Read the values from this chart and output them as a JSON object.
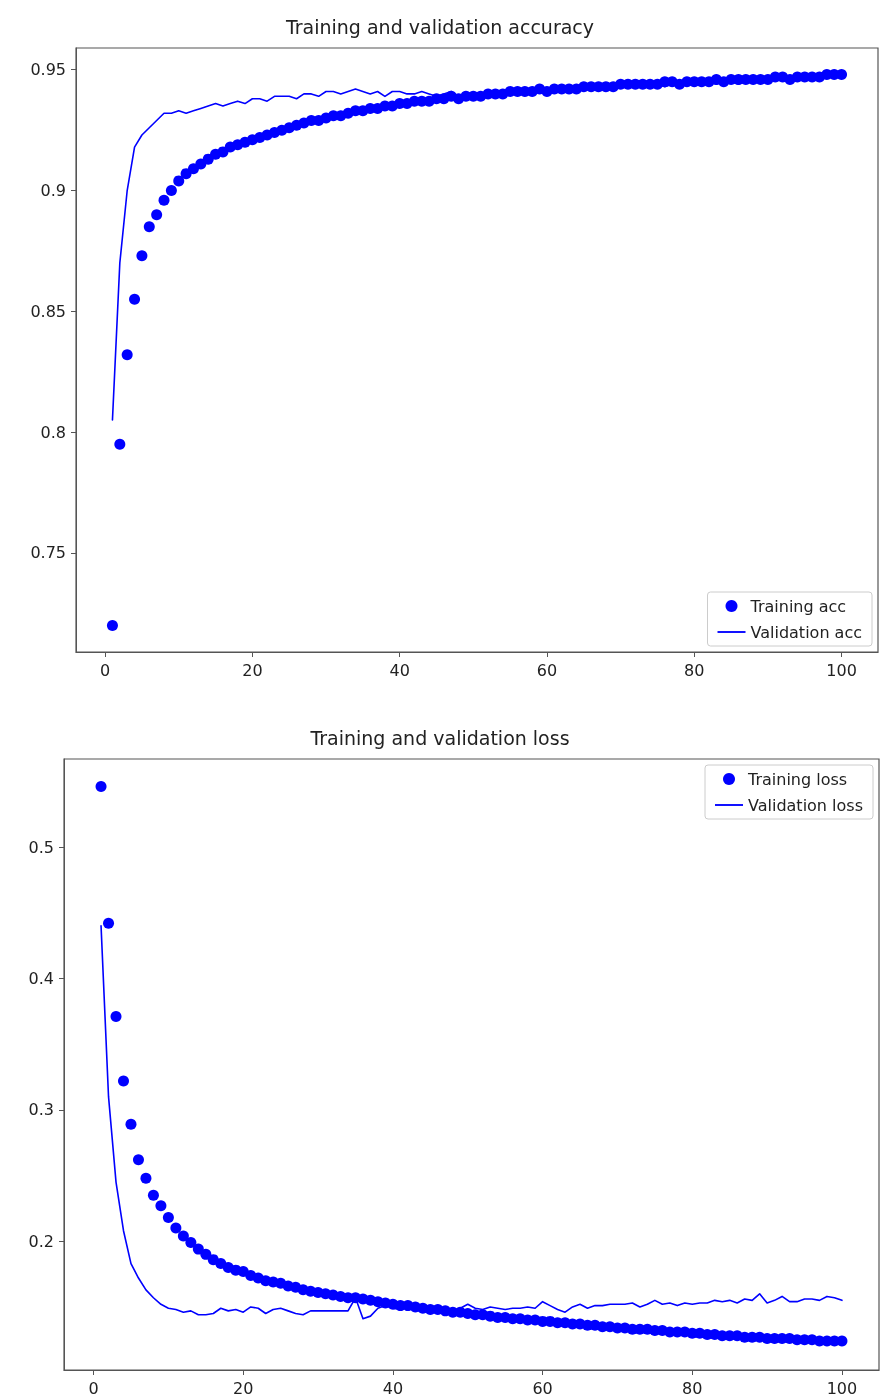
{
  "chart_data": [
    {
      "type": "line",
      "title": "Training and validation accuracy",
      "x": [
        1,
        2,
        3,
        4,
        5,
        6,
        7,
        8,
        9,
        10,
        11,
        12,
        13,
        14,
        15,
        16,
        17,
        18,
        19,
        20,
        21,
        22,
        23,
        24,
        25,
        26,
        27,
        28,
        29,
        30,
        31,
        32,
        33,
        34,
        35,
        36,
        37,
        38,
        39,
        40,
        41,
        42,
        43,
        44,
        45,
        46,
        47,
        48,
        49,
        50,
        51,
        52,
        53,
        54,
        55,
        56,
        57,
        58,
        59,
        60,
        61,
        62,
        63,
        64,
        65,
        66,
        67,
        68,
        69,
        70,
        71,
        72,
        73,
        74,
        75,
        76,
        77,
        78,
        79,
        80,
        81,
        82,
        83,
        84,
        85,
        86,
        87,
        88,
        89,
        90,
        91,
        92,
        93,
        94,
        95,
        96,
        97,
        98,
        99,
        100
      ],
      "xlim": [
        -3.95,
        104.95
      ],
      "xticks": [
        0,
        20,
        40,
        60,
        80,
        100
      ],
      "ylim": [
        0.709,
        0.959
      ],
      "yticks": [
        0.75,
        0.8,
        0.85,
        0.9,
        0.95
      ],
      "grid": false,
      "legend": "bottom right",
      "series": [
        {
          "name": "Training acc",
          "type": "scatter",
          "marker": "circle",
          "color": "#0000ff",
          "values": [
            0.72,
            0.795,
            0.832,
            0.855,
            0.873,
            0.885,
            0.89,
            0.896,
            0.9,
            0.904,
            0.907,
            0.909,
            0.911,
            0.913,
            0.915,
            0.916,
            0.918,
            0.919,
            0.92,
            0.921,
            0.922,
            0.923,
            0.924,
            0.925,
            0.926,
            0.927,
            0.928,
            0.929,
            0.929,
            0.93,
            0.931,
            0.931,
            0.932,
            0.933,
            0.933,
            0.934,
            0.934,
            0.935,
            0.935,
            0.936,
            0.936,
            0.937,
            0.937,
            0.937,
            0.938,
            0.938,
            0.939,
            0.938,
            0.939,
            0.939,
            0.939,
            0.94,
            0.94,
            0.94,
            0.941,
            0.941,
            0.941,
            0.941,
            0.942,
            0.941,
            0.942,
            0.942,
            0.942,
            0.942,
            0.943,
            0.943,
            0.943,
            0.943,
            0.943,
            0.944,
            0.944,
            0.944,
            0.944,
            0.944,
            0.944,
            0.945,
            0.945,
            0.944,
            0.945,
            0.945,
            0.945,
            0.945,
            0.946,
            0.945,
            0.946,
            0.946,
            0.946,
            0.946,
            0.946,
            0.946,
            0.947,
            0.947,
            0.946,
            0.947,
            0.947,
            0.947,
            0.947,
            0.948,
            0.948,
            0.948
          ]
        },
        {
          "name": "Validation acc",
          "type": "line",
          "line_style": "solid",
          "color": "#0000ff",
          "values": [
            0.805,
            0.87,
            0.9,
            0.918,
            0.923,
            0.926,
            0.929,
            0.932,
            0.932,
            0.933,
            0.932,
            0.933,
            0.934,
            0.935,
            0.936,
            0.935,
            0.936,
            0.937,
            0.936,
            0.938,
            0.938,
            0.937,
            0.939,
            0.939,
            0.939,
            0.938,
            0.94,
            0.94,
            0.939,
            0.941,
            0.941,
            0.94,
            0.941,
            0.942,
            0.941,
            0.94,
            0.941,
            0.939,
            0.941,
            0.941,
            0.94,
            0.94,
            0.941,
            0.94,
            0.939,
            0.94,
            0.941,
            0.939,
            0.94,
            0.94,
            0.939,
            0.94,
            0.941,
            0.94,
            0.941,
            0.941,
            0.94,
            0.942,
            0.942,
            0.941,
            0.941,
            0.942,
            0.941,
            0.942,
            0.943,
            0.942,
            0.943,
            0.942,
            0.943,
            0.944,
            0.943,
            0.944,
            0.943,
            0.944,
            0.944,
            0.943,
            0.944,
            0.944,
            0.945,
            0.944,
            0.944,
            0.945,
            0.944,
            0.945,
            0.945,
            0.944,
            0.945,
            0.946,
            0.945,
            0.946,
            0.946,
            0.946,
            0.945,
            0.946,
            0.947,
            0.946,
            0.947,
            0.947,
            0.947,
            0.948
          ]
        }
      ]
    },
    {
      "type": "line",
      "title": "Training and validation loss",
      "x": [
        1,
        2,
        3,
        4,
        5,
        6,
        7,
        8,
        9,
        10,
        11,
        12,
        13,
        14,
        15,
        16,
        17,
        18,
        19,
        20,
        21,
        22,
        23,
        24,
        25,
        26,
        27,
        28,
        29,
        30,
        31,
        32,
        33,
        34,
        35,
        36,
        37,
        38,
        39,
        40,
        41,
        42,
        43,
        44,
        45,
        46,
        47,
        48,
        49,
        50,
        51,
        52,
        53,
        54,
        55,
        56,
        57,
        58,
        59,
        60,
        61,
        62,
        63,
        64,
        65,
        66,
        67,
        68,
        69,
        70,
        71,
        72,
        73,
        74,
        75,
        76,
        77,
        78,
        79,
        80,
        81,
        82,
        83,
        84,
        85,
        86,
        87,
        88,
        89,
        90,
        91,
        92,
        93,
        94,
        95,
        96,
        97,
        98,
        99,
        100
      ],
      "xlim": [
        -3.95,
        104.95
      ],
      "xticks": [
        0,
        20,
        40,
        60,
        80,
        100
      ],
      "ylim": [
        0.102,
        0.567
      ],
      "yticks": [
        0.2,
        0.3,
        0.4,
        0.5
      ],
      "grid": false,
      "legend": "top right",
      "series": [
        {
          "name": "Training loss",
          "type": "scatter",
          "marker": "circle",
          "color": "#0000ff",
          "values": [
            0.546,
            0.442,
            0.371,
            0.322,
            0.289,
            0.262,
            0.248,
            0.235,
            0.227,
            0.218,
            0.21,
            0.204,
            0.199,
            0.194,
            0.19,
            0.186,
            0.183,
            0.18,
            0.178,
            0.177,
            0.174,
            0.172,
            0.17,
            0.169,
            0.168,
            0.166,
            0.165,
            0.163,
            0.162,
            0.161,
            0.16,
            0.159,
            0.158,
            0.157,
            0.157,
            0.156,
            0.155,
            0.154,
            0.153,
            0.152,
            0.151,
            0.151,
            0.15,
            0.149,
            0.148,
            0.148,
            0.147,
            0.146,
            0.146,
            0.145,
            0.144,
            0.144,
            0.143,
            0.142,
            0.142,
            0.141,
            0.141,
            0.14,
            0.14,
            0.139,
            0.139,
            0.138,
            0.138,
            0.137,
            0.137,
            0.136,
            0.136,
            0.135,
            0.135,
            0.134,
            0.134,
            0.133,
            0.133,
            0.133,
            0.132,
            0.132,
            0.131,
            0.131,
            0.131,
            0.13,
            0.13,
            0.129,
            0.129,
            0.128,
            0.128,
            0.128,
            0.127,
            0.127,
            0.127,
            0.126,
            0.126,
            0.126,
            0.126,
            0.125,
            0.125,
            0.125,
            0.124,
            0.124,
            0.124,
            0.124
          ]
        },
        {
          "name": "Validation loss",
          "type": "line",
          "line_style": "solid",
          "color": "#0000ff",
          "values": [
            0.44,
            0.31,
            0.245,
            0.208,
            0.183,
            0.172,
            0.163,
            0.157,
            0.152,
            0.149,
            0.148,
            0.146,
            0.147,
            0.144,
            0.144,
            0.145,
            0.149,
            0.147,
            0.148,
            0.146,
            0.15,
            0.149,
            0.145,
            0.148,
            0.149,
            0.147,
            0.145,
            0.144,
            0.147,
            0.147,
            0.147,
            0.147,
            0.147,
            0.147,
            0.157,
            0.141,
            0.143,
            0.149,
            0.151,
            0.149,
            0.148,
            0.15,
            0.148,
            0.146,
            0.147,
            0.148,
            0.149,
            0.146,
            0.149,
            0.152,
            0.149,
            0.148,
            0.15,
            0.149,
            0.148,
            0.149,
            0.149,
            0.15,
            0.149,
            0.154,
            0.151,
            0.148,
            0.146,
            0.15,
            0.152,
            0.149,
            0.151,
            0.151,
            0.152,
            0.152,
            0.152,
            0.153,
            0.15,
            0.152,
            0.155,
            0.152,
            0.153,
            0.151,
            0.153,
            0.152,
            0.153,
            0.153,
            0.155,
            0.154,
            0.155,
            0.153,
            0.156,
            0.155,
            0.16,
            0.153,
            0.155,
            0.158,
            0.154,
            0.154,
            0.156,
            0.156,
            0.155,
            0.158,
            0.157,
            0.155
          ]
        }
      ]
    }
  ]
}
